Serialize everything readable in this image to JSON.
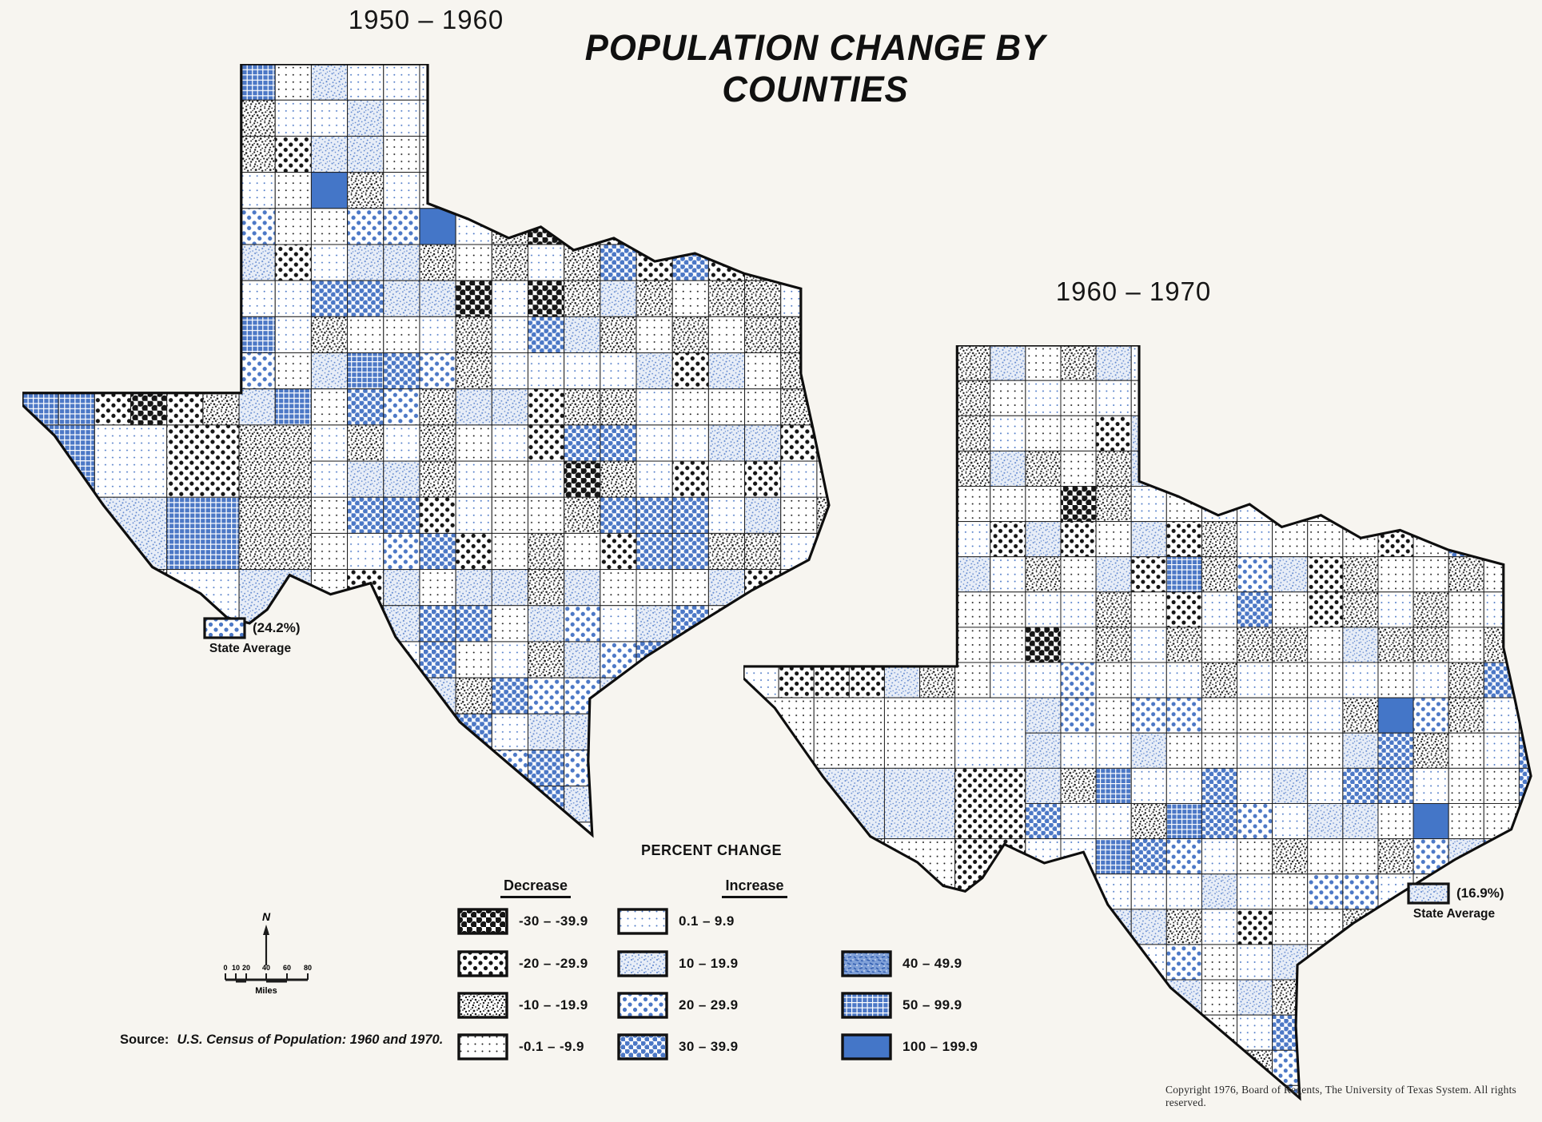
{
  "page": {
    "title": "POPULATION CHANGE BY COUNTIES"
  },
  "maps": [
    {
      "period_label": "1950 – 1960",
      "state_average": {
        "value_label": "(24.2%)",
        "caption": "State Average",
        "swatch_pattern": "inc-20"
      }
    },
    {
      "period_label": "1960 – 1970",
      "state_average": {
        "value_label": "(16.9%)",
        "caption": "State Average",
        "swatch_pattern": "inc-10"
      }
    }
  ],
  "legend": {
    "title": "PERCENT CHANGE",
    "decrease_header": "Decrease",
    "increase_header": "Increase",
    "decrease": [
      {
        "range": "-30  –  -39.9",
        "pattern": "dec-30"
      },
      {
        "range": "-20  –  -29.9",
        "pattern": "dec-20"
      },
      {
        "range": "-10  –  -19.9",
        "pattern": "dec-10"
      },
      {
        "range": "-0.1  –  -9.9",
        "pattern": "dec-0"
      }
    ],
    "increase_col1": [
      {
        "range": "0.1  –  9.9",
        "pattern": "inc-0"
      },
      {
        "range": "10  –  19.9",
        "pattern": "inc-10"
      },
      {
        "range": "20  –  29.9",
        "pattern": "inc-20"
      },
      {
        "range": "30  –  39.9",
        "pattern": "inc-30"
      }
    ],
    "increase_col2": [
      {
        "range": "40  –  49.9",
        "pattern": "inc-40"
      },
      {
        "range": "50  –  99.9",
        "pattern": "inc-50"
      },
      {
        "range": "100  –  199.9",
        "pattern": "inc-100"
      }
    ]
  },
  "compass_scale": {
    "north_label": "N",
    "tick_labels": [
      "0",
      "10",
      "20",
      "40",
      "60",
      "80"
    ],
    "unit_label": "Miles"
  },
  "source": {
    "prefix": "Source:",
    "text": "U.S. Census of Population: 1960 and 1970."
  },
  "copyright": "Copyright 1976, Board of Regents, The University of Texas System. All rights reserved.",
  "colors": {
    "ink": "#1b1b1b",
    "blue_solid": "#4476c8",
    "blue_dot": "#4c78c6",
    "blue_speckle_bg": "#e7edf7"
  }
}
